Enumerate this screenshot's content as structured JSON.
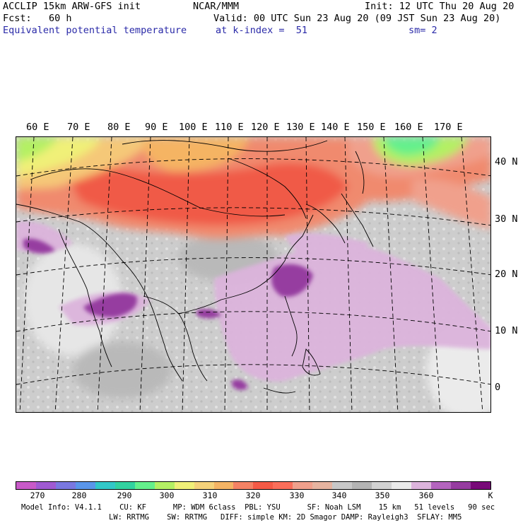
{
  "header": {
    "model": "ACCLIP 15km ARW-GFS init",
    "org": "NCAR/MMM",
    "init": "Init: 12 UTC Thu 20 Aug 20",
    "fcst": "Fcst:   60 h",
    "valid": "Valid: 00 UTC Sun 23 Aug 20 (09 JST Sun 23 Aug 20)",
    "field": "Equivalent potential temperature",
    "level": "at k-index =  51",
    "smooth": "sm= 2"
  },
  "map": {
    "lon_labels": [
      "60 E",
      "70 E",
      "80 E",
      "90 E",
      "100 E",
      "110 E",
      "120 E",
      "130 E",
      "140 E",
      "150 E",
      "160 E",
      "170 E"
    ],
    "lat_labels": [
      "40 N",
      "30 N",
      "20 N",
      "10 N",
      "0"
    ]
  },
  "colorbar": {
    "colors": [
      "#c85ac8",
      "#a05ad2",
      "#7a78e0",
      "#5a96ea",
      "#32c8c8",
      "#32d2a0",
      "#64f08c",
      "#b4f064",
      "#f0f078",
      "#f5d27a",
      "#f5b464",
      "#f58264",
      "#f55a46",
      "#fa6e5a",
      "#f0a08c",
      "#e6b4a0",
      "#c8c8c8",
      "#b4b4b4",
      "#d2d2d2",
      "#ebebeb",
      "#dcb4dc",
      "#b464be",
      "#963ca0",
      "#780a78"
    ],
    "tick_labels": [
      "270",
      "280",
      "290",
      "300",
      "310",
      "320",
      "330",
      "340",
      "350",
      "360"
    ],
    "unit": "K"
  },
  "footer": {
    "line1": "Model Info: V4.1.1    CU: KF      MP: WDM 6class  PBL: YSU      SF: Noah LSM    15 km   51 levels   90 sec",
    "line2": "LW: RRTMG    SW: RRTMG   DIFF: simple KM: 2D Smagor DAMP: Rayleigh3  SFLAY: MM5"
  }
}
